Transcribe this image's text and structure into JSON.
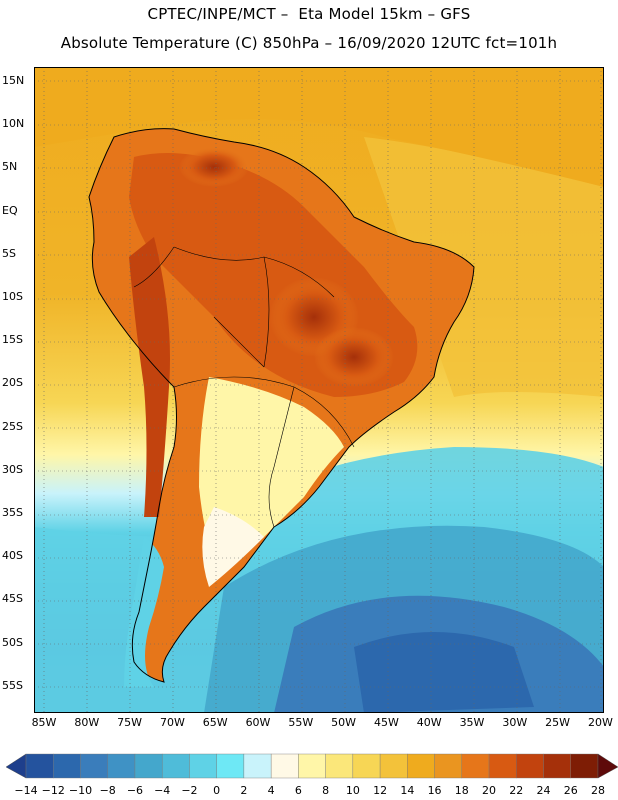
{
  "title": {
    "line1": "CPTEC/INPE/MCT –  Eta Model 15km – GFS",
    "line2": "Absolute Temperature (C) 850hPa – 16/09/2020 12UTC fct=101h"
  },
  "map": {
    "region": "South America",
    "lat_labels": [
      "15N",
      "10N",
      "5N",
      "EQ",
      "5S",
      "10S",
      "15S",
      "20S",
      "25S",
      "30S",
      "35S",
      "40S",
      "45S",
      "50S",
      "55S"
    ],
    "lon_labels": [
      "85W",
      "80W",
      "75W",
      "70W",
      "65W",
      "60W",
      "55W",
      "50W",
      "45W",
      "40W",
      "35W",
      "30W",
      "25W",
      "20W"
    ]
  },
  "colorbar": {
    "labels": [
      "-14",
      "-12",
      "-10",
      "-8",
      "-6",
      "-4",
      "-2",
      "0",
      "2",
      "4",
      "6",
      "8",
      "10",
      "12",
      "14",
      "16",
      "18",
      "20",
      "22",
      "24",
      "26",
      "28"
    ],
    "colors": [
      "#1e3f8c",
      "#24539e",
      "#2c68ad",
      "#3a7dbb",
      "#3f92c5",
      "#44a7cc",
      "#4fbcd9",
      "#5fd2e6",
      "#6ee8f5",
      "#c9f3fb",
      "#fff9e6",
      "#fff6a8",
      "#fbe77a",
      "#f7d655",
      "#f3c23a",
      "#efab1e",
      "#ea9520",
      "#e6761a",
      "#d85a12",
      "#c2430e",
      "#a5300a",
      "#7e1d05",
      "#5e0a0a"
    ]
  }
}
